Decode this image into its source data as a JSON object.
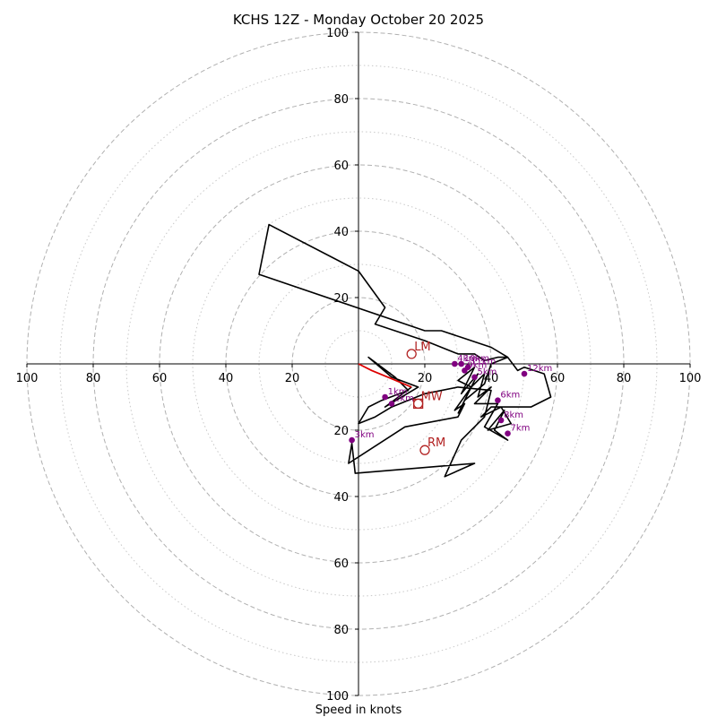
{
  "chart_data": {
    "type": "hodograph",
    "title": "KCHS 12Z - Monday October 20 2025",
    "xlabel": "Speed in knots",
    "max_speed": 100,
    "ring_major_interval": 20,
    "ring_minor_interval": 10,
    "tick_values": [
      100,
      80,
      60,
      40,
      20
    ],
    "colors": {
      "trace": "#000000",
      "low_trace": "#dd0000",
      "km_marker": "#800080",
      "motion": "#b22222",
      "grid_major": "#b0b0b0",
      "grid_minor": "#c8c8c8"
    },
    "trace_low": {
      "u": [
        0,
        4,
        10,
        16
      ],
      "v": [
        0,
        -2,
        -4.5,
        -7
      ]
    },
    "trace": {
      "u": [
        16,
        12,
        8,
        18,
        10,
        3,
        11,
        15,
        7,
        3,
        0,
        5,
        10,
        20,
        30,
        40,
        38,
        31,
        26,
        35,
        -1,
        -2,
        -3,
        14,
        30,
        32,
        29,
        34,
        30,
        35,
        31,
        36,
        34,
        38,
        36,
        40,
        35,
        42,
        38,
        45,
        41,
        44,
        39,
        46,
        43,
        37,
        40,
        52,
        58,
        56,
        50,
        48,
        45,
        40,
        31,
        25,
        20,
        -30,
        -27,
        0,
        8,
        5,
        20,
        30,
        35,
        38,
        42,
        45,
        40,
        38,
        32,
        34,
        30
      ],
      "v": [
        -7,
        -10,
        -13,
        -7,
        -4,
        2,
        -4,
        -8,
        -11,
        -13,
        -18,
        -16,
        -13,
        -9,
        -7,
        -8,
        -16,
        -23,
        -34,
        -30,
        -33,
        -24,
        -30,
        -19,
        -16,
        -12,
        -14,
        -7,
        -5,
        -1,
        -9,
        -3,
        -7,
        -3,
        -10,
        -7,
        -12,
        -12,
        -19,
        -23,
        -20,
        -14,
        -20,
        -18,
        -13,
        -16,
        -13,
        -13,
        -10,
        -3,
        -1,
        -2,
        2,
        5,
        8,
        10,
        10,
        27,
        42,
        28,
        17,
        12,
        7,
        3,
        3,
        1,
        2,
        2,
        0,
        -6,
        -11,
        -7,
        -15
      ]
    },
    "km_markers": [
      {
        "label": "1km",
        "u": 8,
        "v": -10
      },
      {
        "label": "2km",
        "u": 10,
        "v": -12
      },
      {
        "label": "3km",
        "u": -2,
        "v": -23
      },
      {
        "label": "4km",
        "u": 29,
        "v": 0
      },
      {
        "label": "5km",
        "u": 35,
        "v": -4
      },
      {
        "label": "6km",
        "u": 42,
        "v": -11
      },
      {
        "label": "7km",
        "u": 45,
        "v": -21
      },
      {
        "label": "8km",
        "u": 43,
        "v": -17
      },
      {
        "label": "9km",
        "u": 32,
        "v": -2
      },
      {
        "label": "10km",
        "u": 31,
        "v": 0
      },
      {
        "label": "11km",
        "u": 33,
        "v": -1
      },
      {
        "label": "12km",
        "u": 50,
        "v": -3
      }
    ],
    "motions": [
      {
        "label": "LM",
        "u": 16,
        "v": 3
      },
      {
        "label": "MW",
        "u": 18,
        "v": -12
      },
      {
        "label": "RM",
        "u": 20,
        "v": -26
      }
    ],
    "mw_square": {
      "u": 18,
      "v": -12
    }
  }
}
